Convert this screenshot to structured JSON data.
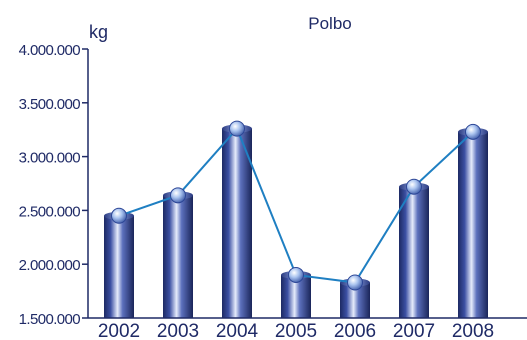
{
  "chart_data": {
    "type": "bar",
    "title": "Polbo",
    "ylabel": "kg",
    "xlabel": "",
    "categories": [
      "2002",
      "2003",
      "2004",
      "2005",
      "2006",
      "2007",
      "2008"
    ],
    "values": [
      2450000,
      2640000,
      3260000,
      1900000,
      1830000,
      2720000,
      3230000
    ],
    "ylim": [
      1500000,
      4000000
    ],
    "yticks": [
      "1.500.000",
      "2.000.000",
      "2.500.000",
      "3.000.000",
      "3.500.000",
      "4.000.000"
    ],
    "ytick_values": [
      1500000,
      2000000,
      2500000,
      3000000,
      3500000,
      4000000
    ],
    "overlay_line": true,
    "grid": false,
    "colors": {
      "bar": "#2e3f8c",
      "line": "#1f7fc2",
      "marker": "#a9c3ef",
      "text": "#1f2a66"
    }
  }
}
